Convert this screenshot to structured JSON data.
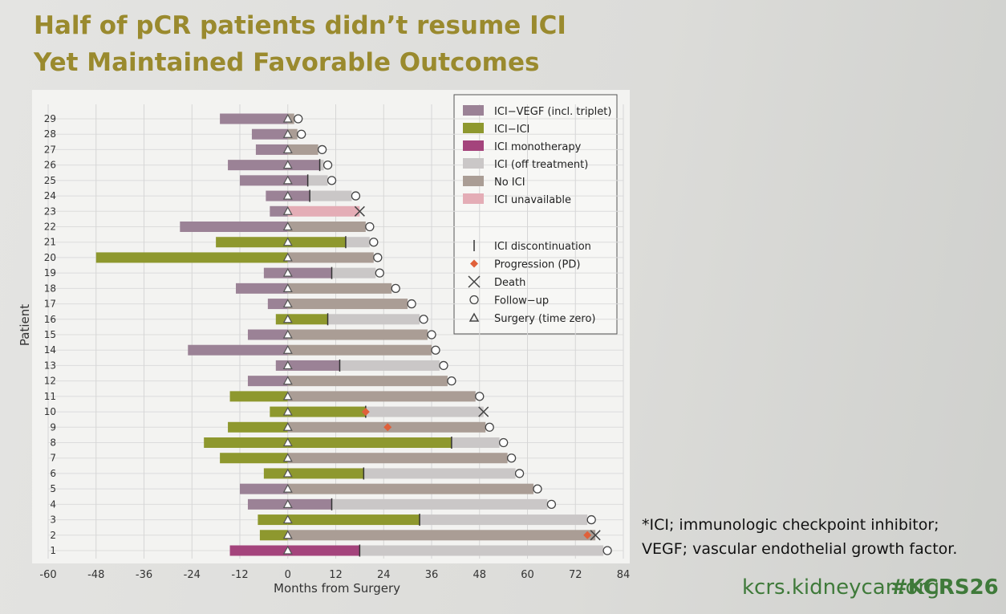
{
  "chart_data": {
    "type": "swimmer",
    "title_lines": [
      "Half of pCR patients didn’t resume ICI",
      "Yet Maintained Favorable Outcomes"
    ],
    "x_label": "Months from Surgery",
    "y_label": "Patient",
    "xlim": [
      -60,
      84
    ],
    "xticks": [
      -60,
      -48,
      -36,
      -24,
      -12,
      0,
      12,
      24,
      36,
      48,
      60,
      72,
      84
    ],
    "grid": true,
    "treatments": [
      {
        "name": "ICI−VEGF (incl. triplet)",
        "color": "#9b8296"
      },
      {
        "name": "ICI−ICI",
        "color": "#8e982e"
      },
      {
        "name": "ICI monotherapy",
        "color": "#a4447c"
      },
      {
        "name": "ICI (off treatment)",
        "color": "#cac7c7"
      },
      {
        "name": "No ICI",
        "color": "#aa9d95"
      },
      {
        "name": "ICI unavailable",
        "color": "#e4adb6"
      }
    ],
    "markers": [
      "ICI discontinuation",
      "Progression (PD)",
      "Death",
      "Follow−up",
      "Surgery (time zero)"
    ],
    "patients": [
      {
        "label": "1",
        "start": -14.5,
        "pre": 2,
        "on": 2,
        "disc": 18,
        "after": 3,
        "end": 79,
        "pd": null,
        "outcome": 3
      },
      {
        "label": "2",
        "start": -7,
        "pre": 1,
        "on": null,
        "disc": null,
        "after": 4,
        "end": 77,
        "pd": 75,
        "outcome": 2
      },
      {
        "label": "3",
        "start": -7.5,
        "pre": 1,
        "on": 1,
        "disc": 33,
        "after": 3,
        "end": 75,
        "pd": null,
        "outcome": 3
      },
      {
        "label": "4",
        "start": -10,
        "pre": 0,
        "on": 0,
        "disc": 11,
        "after": 3,
        "end": 65,
        "pd": null,
        "outcome": 3
      },
      {
        "label": "5",
        "start": -12,
        "pre": 0,
        "on": null,
        "disc": null,
        "after": 4,
        "end": 61.5,
        "pd": null,
        "outcome": 3
      },
      {
        "label": "6",
        "start": -6,
        "pre": 1,
        "on": 1,
        "disc": 19,
        "after": 3,
        "end": 57,
        "pd": null,
        "outcome": 3
      },
      {
        "label": "7",
        "start": -17,
        "pre": 1,
        "on": null,
        "disc": null,
        "after": 4,
        "end": 55,
        "pd": null,
        "outcome": 3
      },
      {
        "label": "8",
        "start": -21,
        "pre": 1,
        "on": 1,
        "disc": 41,
        "after": 3,
        "end": 53,
        "pd": null,
        "outcome": 3
      },
      {
        "label": "9",
        "start": -15,
        "pre": 1,
        "on": null,
        "disc": null,
        "after": 4,
        "end": 49.5,
        "pd": 25,
        "outcome": 3
      },
      {
        "label": "10",
        "start": -4.5,
        "pre": 1,
        "on": 1,
        "disc": 19.5,
        "after": 3,
        "end": 49,
        "pd": 19.5,
        "outcome": 2
      },
      {
        "label": "11",
        "start": -14.5,
        "pre": 1,
        "on": null,
        "disc": null,
        "after": 4,
        "end": 47,
        "pd": null,
        "outcome": 3
      },
      {
        "label": "12",
        "start": -10,
        "pre": 0,
        "on": null,
        "disc": null,
        "after": 4,
        "end": 40,
        "pd": null,
        "outcome": 3
      },
      {
        "label": "13",
        "start": -3,
        "pre": 0,
        "on": 0,
        "disc": 13,
        "after": 3,
        "end": 38,
        "pd": null,
        "outcome": 3
      },
      {
        "label": "14",
        "start": -25,
        "pre": 0,
        "on": null,
        "disc": null,
        "after": 4,
        "end": 36,
        "pd": null,
        "outcome": 3
      },
      {
        "label": "15",
        "start": -10,
        "pre": 0,
        "on": null,
        "disc": null,
        "after": 4,
        "end": 35,
        "pd": null,
        "outcome": 3
      },
      {
        "label": "16",
        "start": -3,
        "pre": 1,
        "on": 1,
        "disc": 10,
        "after": 3,
        "end": 33,
        "pd": null,
        "outcome": 3
      },
      {
        "label": "17",
        "start": -5,
        "pre": 0,
        "on": null,
        "disc": null,
        "after": 4,
        "end": 30,
        "pd": null,
        "outcome": 3
      },
      {
        "label": "18",
        "start": -13,
        "pre": 0,
        "on": null,
        "disc": null,
        "after": 4,
        "end": 26,
        "pd": null,
        "outcome": 3
      },
      {
        "label": "19",
        "start": -6,
        "pre": 0,
        "on": 0,
        "disc": 11,
        "after": 3,
        "end": 22,
        "pd": null,
        "outcome": 3
      },
      {
        "label": "20",
        "start": -48,
        "pre": 1,
        "on": null,
        "disc": null,
        "after": 4,
        "end": 21.5,
        "pd": null,
        "outcome": 3
      },
      {
        "label": "21",
        "start": -18,
        "pre": 1,
        "on": 1,
        "disc": 14.5,
        "after": 3,
        "end": 20.5,
        "pd": null,
        "outcome": 3
      },
      {
        "label": "22",
        "start": -27,
        "pre": 0,
        "on": null,
        "disc": null,
        "after": 4,
        "end": 19.5,
        "pd": null,
        "outcome": 3
      },
      {
        "label": "23",
        "start": -4.5,
        "pre": 0,
        "on": null,
        "disc": null,
        "after": 5,
        "end": 18,
        "pd": null,
        "outcome": 2
      },
      {
        "label": "24",
        "start": -5.5,
        "pre": 0,
        "on": 0,
        "disc": 5.5,
        "after": 3,
        "end": 16,
        "pd": null,
        "outcome": 3
      },
      {
        "label": "25",
        "start": -12,
        "pre": 0,
        "on": 0,
        "disc": 5,
        "after": 3,
        "end": 10,
        "pd": null,
        "outcome": 3
      },
      {
        "label": "26",
        "start": -15,
        "pre": 0,
        "on": 0,
        "disc": 8,
        "after": 3,
        "end": 9,
        "pd": null,
        "outcome": 3
      },
      {
        "label": "27",
        "start": -8,
        "pre": 0,
        "on": null,
        "disc": null,
        "after": 4,
        "end": 7.6,
        "pd": null,
        "outcome": 3
      },
      {
        "label": "28",
        "start": -9,
        "pre": 0,
        "on": null,
        "disc": null,
        "after": 4,
        "end": 2.4,
        "pd": null,
        "outcome": 3
      },
      {
        "label": "29",
        "start": -17,
        "pre": 0,
        "on": null,
        "disc": null,
        "after": 4,
        "end": 1.6,
        "pd": null,
        "outcome": 3
      }
    ],
    "footnote_lines": [
      "*ICI; immunologic checkpoint inhibitor;",
      "VEGF; vascular endothelial growth factor."
    ],
    "source": "kcrs.kidneycan.org",
    "hashtag": "#KCRS26"
  }
}
